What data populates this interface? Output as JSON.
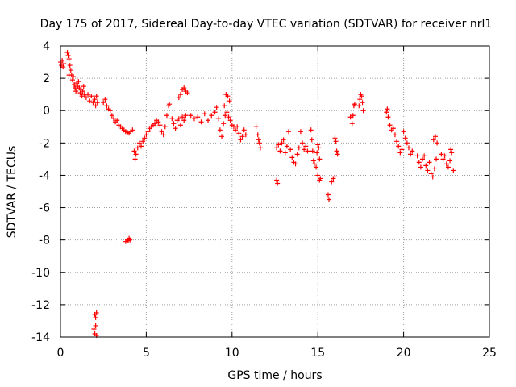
{
  "chart_data": {
    "type": "scatter",
    "title": "Day 175 of 2017, Sidereal Day-to-day VTEC variation (SDTVAR) for receiver nrl1",
    "xlabel": "GPS time / hours",
    "ylabel": "SDTVAR / TECUs",
    "xlim": [
      0,
      25
    ],
    "ylim": [
      -14,
      4
    ],
    "xticks": [
      0,
      5,
      10,
      15,
      20,
      25
    ],
    "yticks": [
      -14,
      -12,
      -10,
      -8,
      -6,
      -4,
      -2,
      0,
      2,
      4
    ],
    "grid": true,
    "marker": "plus",
    "color": "#ff0000",
    "series": [
      {
        "name": "SDTVAR",
        "points": [
          [
            0.0,
            3.0
          ],
          [
            0.05,
            2.8
          ],
          [
            0.1,
            3.1
          ],
          [
            0.15,
            2.7
          ],
          [
            0.2,
            2.9
          ],
          [
            0.4,
            3.6
          ],
          [
            0.45,
            3.4
          ],
          [
            0.5,
            3.2
          ],
          [
            0.55,
            2.8
          ],
          [
            0.6,
            2.5
          ],
          [
            0.5,
            2.2
          ],
          [
            0.65,
            2.2
          ],
          [
            0.7,
            1.9
          ],
          [
            0.75,
            2.1
          ],
          [
            0.8,
            1.6
          ],
          [
            0.85,
            1.4
          ],
          [
            0.9,
            1.2
          ],
          [
            0.95,
            1.7
          ],
          [
            1.0,
            1.5
          ],
          [
            1.05,
            1.8
          ],
          [
            1.1,
            1.4
          ],
          [
            1.15,
            1.1
          ],
          [
            1.2,
            1.3
          ],
          [
            1.25,
            0.9
          ],
          [
            1.3,
            1.2
          ],
          [
            1.35,
            1.5
          ],
          [
            1.4,
            1.0
          ],
          [
            1.5,
            0.8
          ],
          [
            1.6,
            1.0
          ],
          [
            1.7,
            0.6
          ],
          [
            1.8,
            0.9
          ],
          [
            1.9,
            0.5
          ],
          [
            2.0,
            0.7
          ],
          [
            2.05,
            0.3
          ],
          [
            2.1,
            0.9
          ],
          [
            2.15,
            0.5
          ],
          [
            2.5,
            0.5
          ],
          [
            2.6,
            0.7
          ],
          [
            2.7,
            0.3
          ],
          [
            2.8,
            0.1
          ],
          [
            2.9,
            0.0
          ],
          [
            3.0,
            -0.3
          ],
          [
            3.1,
            -0.5
          ],
          [
            3.2,
            -0.7
          ],
          [
            3.3,
            -0.6
          ],
          [
            3.4,
            -0.9
          ],
          [
            3.5,
            -1.0
          ],
          [
            3.6,
            -1.1
          ],
          [
            3.7,
            -1.2
          ],
          [
            3.8,
            -1.3
          ],
          [
            3.9,
            -1.35
          ],
          [
            4.0,
            -1.4
          ],
          [
            4.1,
            -1.3
          ],
          [
            4.2,
            -1.2
          ],
          [
            4.3,
            -2.5
          ],
          [
            4.35,
            -3.0
          ],
          [
            4.4,
            -2.7
          ],
          [
            4.5,
            -2.3
          ],
          [
            4.6,
            -2.0
          ],
          [
            4.7,
            -2.2
          ],
          [
            4.8,
            -1.9
          ],
          [
            4.9,
            -1.7
          ],
          [
            5.0,
            -1.5
          ],
          [
            5.1,
            -1.3
          ],
          [
            5.2,
            -1.1
          ],
          [
            5.3,
            -1.0
          ],
          [
            5.4,
            -0.9
          ],
          [
            5.5,
            -0.8
          ],
          [
            5.6,
            -0.6
          ],
          [
            5.7,
            -0.7
          ],
          [
            5.8,
            -0.9
          ],
          [
            5.9,
            -1.3
          ],
          [
            6.0,
            -1.5
          ],
          [
            6.1,
            -1.0
          ],
          [
            6.2,
            -0.3
          ],
          [
            6.3,
            0.3
          ],
          [
            6.35,
            0.4
          ],
          [
            6.5,
            -0.5
          ],
          [
            6.6,
            -0.8
          ],
          [
            6.7,
            -1.1
          ],
          [
            6.8,
            -0.6
          ],
          [
            6.9,
            -0.5
          ],
          [
            7.0,
            -0.9
          ],
          [
            7.1,
            -0.4
          ],
          [
            7.2,
            -0.6
          ],
          [
            7.3,
            -0.3
          ],
          [
            6.9,
            0.8
          ],
          [
            7.0,
            1.0
          ],
          [
            7.1,
            1.3
          ],
          [
            7.2,
            1.4
          ],
          [
            7.3,
            1.2
          ],
          [
            7.4,
            1.1
          ],
          [
            7.6,
            -0.3
          ],
          [
            7.8,
            -0.5
          ],
          [
            8.0,
            -0.4
          ],
          [
            8.2,
            -0.7
          ],
          [
            8.4,
            -0.2
          ],
          [
            8.6,
            -0.6
          ],
          [
            8.8,
            -0.3
          ],
          [
            9.0,
            -0.1
          ],
          [
            9.1,
            0.2
          ],
          [
            9.2,
            -0.5
          ],
          [
            9.3,
            -1.2
          ],
          [
            9.4,
            -1.6
          ],
          [
            9.5,
            -0.8
          ],
          [
            9.6,
            -0.3
          ],
          [
            9.7,
            -0.1
          ],
          [
            9.8,
            -0.4
          ],
          [
            9.9,
            -0.6
          ],
          [
            10.0,
            -0.9
          ],
          [
            9.55,
            0.3
          ],
          [
            9.65,
            1.0
          ],
          [
            9.75,
            0.9
          ],
          [
            9.85,
            0.6
          ],
          [
            10.1,
            -1.0
          ],
          [
            10.2,
            -1.2
          ],
          [
            10.3,
            -1.0
          ],
          [
            10.4,
            -1.4
          ],
          [
            10.5,
            -1.8
          ],
          [
            10.6,
            -1.6
          ],
          [
            10.7,
            -1.2
          ],
          [
            10.8,
            -1.5
          ],
          [
            11.4,
            -1.0
          ],
          [
            11.5,
            -1.5
          ],
          [
            11.55,
            -1.8
          ],
          [
            11.6,
            -2.0
          ],
          [
            11.65,
            -2.3
          ],
          [
            12.6,
            -4.3
          ],
          [
            12.65,
            -4.5
          ],
          [
            12.6,
            -2.3
          ],
          [
            12.7,
            -2.1
          ],
          [
            12.8,
            -2.5
          ],
          [
            12.9,
            -2.0
          ],
          [
            13.0,
            -1.8
          ],
          [
            13.1,
            -2.6
          ],
          [
            13.2,
            -2.2
          ],
          [
            13.3,
            -1.3
          ],
          [
            13.4,
            -2.4
          ],
          [
            13.5,
            -2.9
          ],
          [
            13.6,
            -3.2
          ],
          [
            13.7,
            -3.3
          ],
          [
            13.8,
            -2.7
          ],
          [
            13.9,
            -2.3
          ],
          [
            14.0,
            -1.3
          ],
          [
            14.1,
            -2.0
          ],
          [
            14.2,
            -2.4
          ],
          [
            14.3,
            -2.2
          ],
          [
            14.4,
            -2.5
          ],
          [
            14.6,
            -1.2
          ],
          [
            14.65,
            -1.8
          ],
          [
            14.7,
            -2.5
          ],
          [
            14.75,
            -3.1
          ],
          [
            14.8,
            -3.3
          ],
          [
            14.9,
            -3.5
          ],
          [
            14.95,
            -2.6
          ],
          [
            15.0,
            -2.1
          ],
          [
            15.05,
            -2.3
          ],
          [
            15.1,
            -3.0
          ],
          [
            15.0,
            -4.0
          ],
          [
            15.1,
            -4.3
          ],
          [
            15.15,
            -4.2
          ],
          [
            15.6,
            -5.2
          ],
          [
            15.65,
            -5.5
          ],
          [
            15.8,
            -4.4
          ],
          [
            15.9,
            -4.2
          ],
          [
            16.0,
            -4.1
          ],
          [
            16.1,
            -2.5
          ],
          [
            16.15,
            -2.7
          ],
          [
            16.0,
            -1.7
          ],
          [
            16.05,
            -1.9
          ],
          [
            16.9,
            -0.4
          ],
          [
            17.0,
            -0.8
          ],
          [
            17.05,
            -0.3
          ],
          [
            17.1,
            0.3
          ],
          [
            17.15,
            0.4
          ],
          [
            17.4,
            0.3
          ],
          [
            17.45,
            0.7
          ],
          [
            17.5,
            1.0
          ],
          [
            17.55,
            0.9
          ],
          [
            17.6,
            0.5
          ],
          [
            17.65,
            0.0
          ],
          [
            19.0,
            -0.1
          ],
          [
            19.05,
            0.1
          ],
          [
            19.1,
            -0.4
          ],
          [
            19.2,
            -0.9
          ],
          [
            19.3,
            -1.2
          ],
          [
            19.4,
            -1.1
          ],
          [
            19.5,
            -1.5
          ],
          [
            19.6,
            -1.9
          ],
          [
            19.7,
            -2.2
          ],
          [
            19.8,
            -2.6
          ],
          [
            19.9,
            -2.4
          ],
          [
            20.0,
            -1.3
          ],
          [
            20.1,
            -1.7
          ],
          [
            20.2,
            -2.0
          ],
          [
            20.3,
            -2.3
          ],
          [
            20.4,
            -2.7
          ],
          [
            20.5,
            -2.5
          ],
          [
            20.8,
            -2.8
          ],
          [
            20.9,
            -3.2
          ],
          [
            21.0,
            -3.5
          ],
          [
            21.1,
            -3.0
          ],
          [
            21.2,
            -2.8
          ],
          [
            21.3,
            -3.4
          ],
          [
            21.4,
            -3.7
          ],
          [
            21.5,
            -3.2
          ],
          [
            21.6,
            -3.9
          ],
          [
            21.7,
            -4.1
          ],
          [
            21.8,
            -3.6
          ],
          [
            21.9,
            -3.0
          ],
          [
            21.75,
            -1.8
          ],
          [
            21.85,
            -1.6
          ],
          [
            21.95,
            -2.0
          ],
          [
            22.2,
            -2.7
          ],
          [
            22.3,
            -3.0
          ],
          [
            22.4,
            -2.8
          ],
          [
            22.5,
            -3.3
          ],
          [
            22.6,
            -3.5
          ],
          [
            22.7,
            -3.1
          ],
          [
            22.8,
            -2.6
          ],
          [
            22.9,
            -3.7
          ],
          [
            22.75,
            -2.4
          ],
          [
            3.8,
            -8.1
          ],
          [
            3.9,
            -8.0
          ],
          [
            3.95,
            -8.05
          ],
          [
            4.0,
            -7.9
          ],
          [
            4.05,
            -8.0
          ],
          [
            2.0,
            -12.6
          ],
          [
            2.05,
            -12.8
          ],
          [
            2.1,
            -12.5
          ],
          [
            1.95,
            -13.5
          ],
          [
            2.0,
            -13.8
          ],
          [
            2.05,
            -13.3
          ],
          [
            2.1,
            -13.9
          ]
        ]
      }
    ]
  }
}
